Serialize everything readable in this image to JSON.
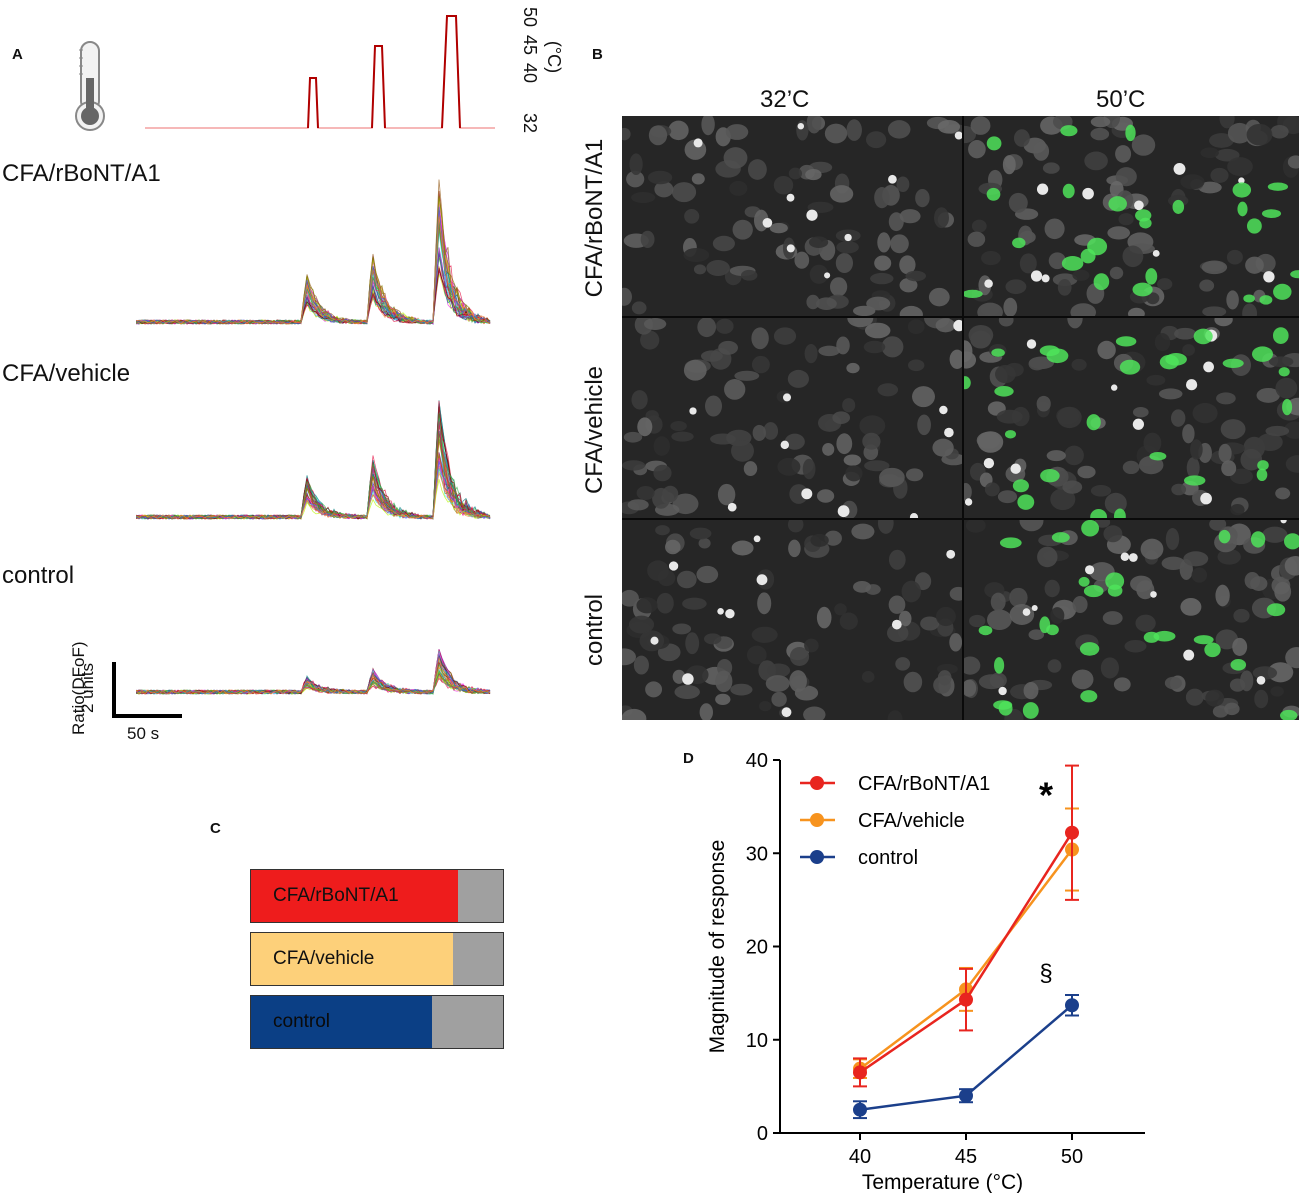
{
  "panels": {
    "a": "A",
    "b": "B",
    "c": "C",
    "d": "D"
  },
  "panel_a": {
    "temp_axis_ticks": [
      "32",
      "40",
      "45",
      "50"
    ],
    "temp_axis_unit": "(°C)",
    "groups": [
      "CFA/rBoNT/A1",
      "CFA/vehicle",
      "control"
    ],
    "scale_y_label": "Ratio(DFoF)",
    "scale_y_value": "2 units",
    "scale_x_label": "50 s",
    "thermometer_icon": "thermometer-icon",
    "trace_colors": [
      "#e6194b",
      "#3cb44b",
      "#4363d8",
      "#f58231",
      "#911eb4",
      "#46f0f0",
      "#f032e6",
      "#bcf60c",
      "#008080",
      "#9a6324",
      "#800000",
      "#808000"
    ]
  },
  "panel_b": {
    "columns": [
      "32’C",
      "50’C"
    ],
    "rows": [
      "CFA/rBoNT/A1",
      "CFA/vehicle",
      "control"
    ]
  },
  "panel_c": {
    "bars": [
      {
        "label": "CFA/rBoNT/A1",
        "fraction": 0.82,
        "color": "#ee1c1c"
      },
      {
        "label": "CFA/vehicle",
        "fraction": 0.8,
        "color": "#fdd07a"
      },
      {
        "label": "control",
        "fraction": 0.72,
        "color": "#0b3f85"
      }
    ],
    "rest_color": "#a0a0a0"
  },
  "chart_data": {
    "type": "line",
    "title": "",
    "xlabel": "Temperature (°C)",
    "ylabel": "Magnitude of response",
    "categories": [
      "40",
      "45",
      "50"
    ],
    "ylim": [
      0,
      40
    ],
    "yticks": [
      "0",
      "10",
      "20",
      "30",
      "40"
    ],
    "legend_position": "top-left",
    "series": [
      {
        "name": "CFA/rBoNT/A1",
        "color": "#e8251f",
        "values": [
          6.5,
          14.3,
          32.2
        ],
        "errors": [
          1.5,
          3.3,
          7.2
        ]
      },
      {
        "name": "CFA/vehicle",
        "color": "#f7931e",
        "values": [
          6.9,
          15.4,
          30.4
        ],
        "errors": [
          1.0,
          2.3,
          4.4
        ]
      },
      {
        "name": "control",
        "color": "#1b3f8b",
        "values": [
          2.5,
          4.0,
          13.7
        ],
        "errors": [
          0.9,
          0.7,
          1.1
        ]
      }
    ],
    "annotations": [
      {
        "text": "*",
        "x": "50",
        "series": "CFA/rBoNT/A1"
      },
      {
        "text": "§",
        "x": "50",
        "series": "control"
      }
    ]
  }
}
